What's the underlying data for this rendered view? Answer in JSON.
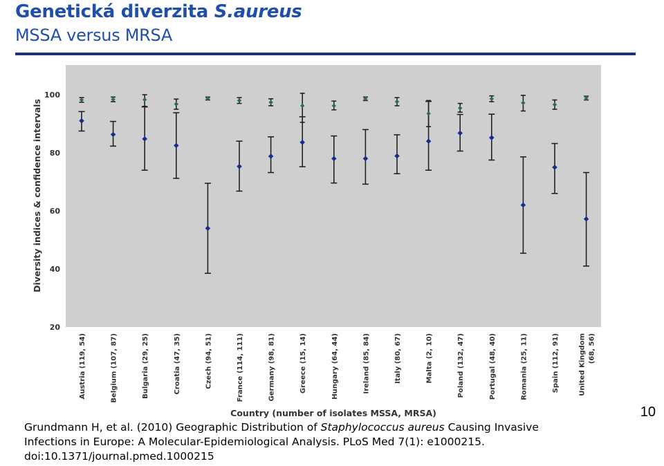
{
  "title": {
    "main": "Genetická diverzita ",
    "organism": "S.aureus"
  },
  "subtitle": "MSSA versus MRSA",
  "slide_number": "10",
  "citation": {
    "before": "Grundmann H, et al. (2010) Geographic Distribution of ",
    "species": "Staphylococcus aureus",
    "after": " Causing Invasive Infections in Europe: A Molecular-Epidemiological Analysis. PLoS Med 7(1): e1000215. doi:10.1371/journal.pmed.1000215"
  },
  "colors": {
    "plot_bg": "#cfcfcf",
    "mrsa_marker": "#1a2d8c",
    "mssa_marker": "#2f6b55",
    "error_bar": "#222222",
    "axis_text": "#333333",
    "title": "#1f4fa8",
    "rule": "#1f2f7a"
  },
  "chart_data": {
    "type": "scatter",
    "xlabel": "Country (number of isolates MSSA, MRSA)",
    "ylabel": "Diversity indices & confidence intervals",
    "ylim": [
      20,
      105
    ],
    "yticks": [
      20,
      40,
      60,
      80,
      100
    ],
    "grid": false,
    "legend": "none",
    "categories": [
      "Austria (119, 54)",
      "Belgium (107, 87)",
      "Bulgaria (29, 25)",
      "Croatia (47, 35)",
      "Czech (94, 51)",
      "France (114, 111)",
      "Germany (98, 81)",
      "Greece (15, 14)",
      "Hungary (64, 44)",
      "Ireland (85, 84)",
      "Italy (80, 67)",
      "Malta (2, 10)",
      "Poland (132, 47)",
      "Portugal (48, 40)",
      "Romania (25, 11)",
      "Spain (112, 91)",
      "United Kingdom (68, 56)"
    ],
    "category_lines": [
      [
        "Austria (119, 54)"
      ],
      [
        "Belgium (107, 87)"
      ],
      [
        "Bulgaria (29, 25)"
      ],
      [
        "Croatia (47, 35)"
      ],
      [
        "Czech (94, 51)"
      ],
      [
        "France (114, 111)"
      ],
      [
        "Germany (98, 81)"
      ],
      [
        "Greece (15, 14)"
      ],
      [
        "Hungary (64, 44)"
      ],
      [
        "Ireland (85, 84)"
      ],
      [
        "Italy (80, 67)"
      ],
      [
        "Malta (2, 10)"
      ],
      [
        "Poland (132, 47)"
      ],
      [
        "Portugal (48, 40)"
      ],
      [
        "Romania (25, 11)"
      ],
      [
        "Spain (112, 91)"
      ],
      [
        "United Kingdom",
        "(68, 56)"
      ]
    ],
    "series": [
      {
        "key": "mssa",
        "values": [
          98.2,
          98.4,
          98.3,
          96.8,
          98.8,
          98.0,
          97.4,
          96.2,
          96.2,
          98.6,
          97.6,
          93.5,
          95.4,
          98.6,
          97.2,
          96.6,
          98.9
        ],
        "lower": [
          97.4,
          97.6,
          96.0,
          95.0,
          98.2,
          97.0,
          96.2,
          90.5,
          94.8,
          98.0,
          96.2,
          89.0,
          94.0,
          97.6,
          94.4,
          95.0,
          98.2
        ],
        "upper": [
          99.0,
          99.2,
          100.0,
          98.5,
          99.2,
          99.0,
          98.6,
          100.5,
          97.8,
          99.2,
          99.0,
          98.0,
          97.0,
          99.6,
          99.8,
          98.2,
          99.5
        ]
      },
      {
        "key": "mrsa",
        "values": [
          91.0,
          86.3,
          84.8,
          82.5,
          54.0,
          75.3,
          78.8,
          83.6,
          78.0,
          78.0,
          78.9,
          84.0,
          86.8,
          85.2,
          62.0,
          75.0,
          57.2
        ],
        "lower": [
          87.5,
          82.3,
          74.0,
          71.2,
          38.5,
          66.8,
          73.2,
          75.2,
          69.6,
          69.2,
          72.8,
          74.0,
          80.6,
          77.5,
          45.4,
          66.0,
          41.0
        ],
        "upper": [
          94.2,
          90.8,
          95.8,
          93.8,
          69.5,
          84.0,
          85.5,
          92.4,
          85.8,
          88.0,
          86.2,
          97.7,
          93.2,
          93.3,
          78.6,
          83.2,
          73.2
        ]
      }
    ]
  }
}
